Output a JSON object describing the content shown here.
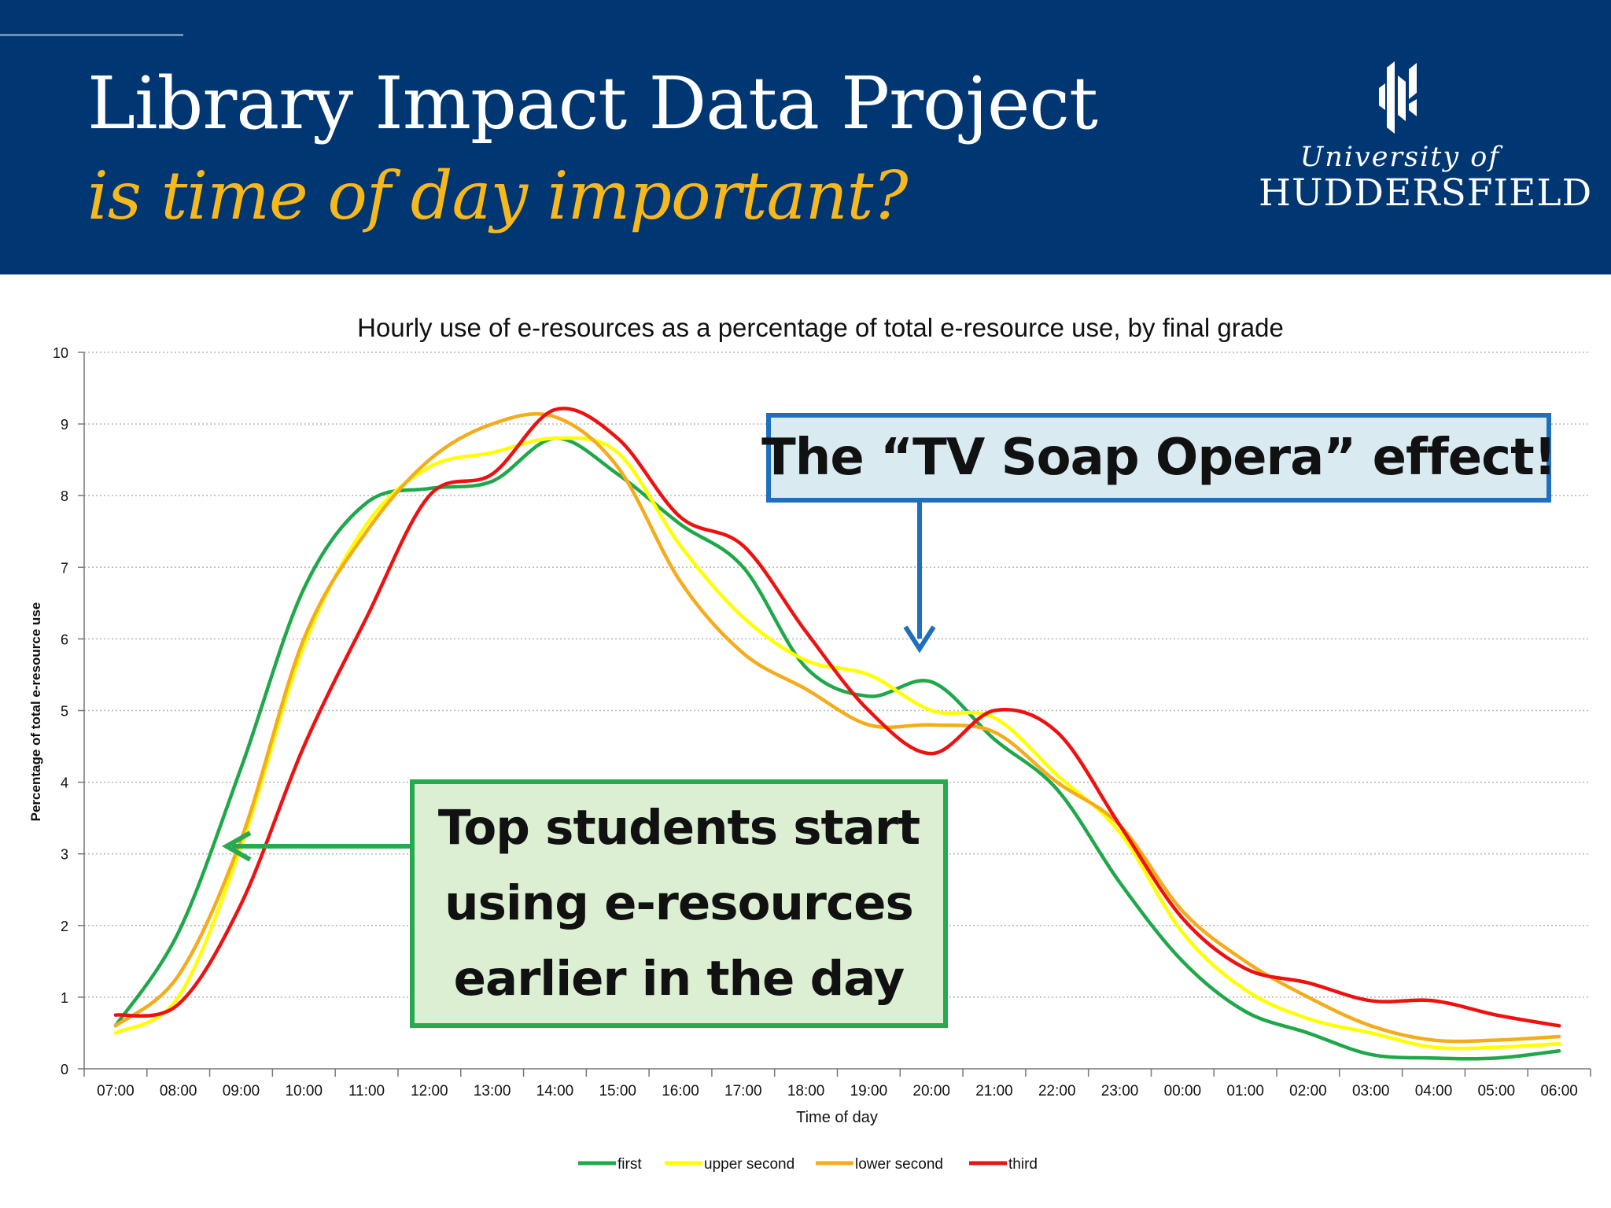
{
  "slide": {
    "title": "Library Impact Data Project",
    "subtitle": "is time of day important?",
    "logo": {
      "line1": "University of",
      "line2": "HUDDERSFIELD"
    },
    "callout_tv": "The “TV Soap Opera” effect!",
    "callout_top": "Top students start\nusing e-resources\nearlier in the day"
  },
  "colors": {
    "banner": "#003671",
    "subtitle": "#f7b81e",
    "first": "#1fa84a",
    "upper_second": "#ffff00",
    "lower_second": "#f5ac1b",
    "third": "#ee1111",
    "callout_tv_border": "#1f6fbf",
    "callout_top_border": "#27aa4f"
  },
  "chart_data": {
    "type": "line",
    "title": "Hourly use of e-resources as a percentage of total e-resource use,  by final grade",
    "xlabel": "Time of day",
    "ylabel": "Percentage of total e-resource use",
    "ylim": [
      0,
      10
    ],
    "yticks": [
      0,
      1,
      2,
      3,
      4,
      5,
      6,
      7,
      8,
      9,
      10
    ],
    "grid": true,
    "legend_position": "bottom-center",
    "categories": [
      "07:00",
      "08:00",
      "09:00",
      "10:00",
      "11:00",
      "12:00",
      "13:00",
      "14:00",
      "15:00",
      "16:00",
      "17:00",
      "18:00",
      "19:00",
      "20:00",
      "21:00",
      "22:00",
      "23:00",
      "00:00",
      "01:00",
      "02:00",
      "03:00",
      "04:00",
      "05:00",
      "06:00"
    ],
    "series": [
      {
        "name": "first",
        "color": "#1fa84a",
        "values": [
          0.6,
          1.9,
          4.2,
          6.7,
          7.9,
          8.1,
          8.2,
          8.8,
          8.3,
          7.6,
          7.0,
          5.6,
          5.2,
          5.4,
          4.6,
          3.9,
          2.6,
          1.5,
          0.8,
          0.5,
          0.2,
          0.15,
          0.15,
          0.25
        ]
      },
      {
        "name": "upper second",
        "color": "#ffff00",
        "values": [
          0.5,
          1.0,
          3.1,
          5.9,
          7.6,
          8.4,
          8.6,
          8.8,
          8.6,
          7.3,
          6.3,
          5.7,
          5.5,
          5.0,
          4.9,
          4.1,
          3.3,
          1.9,
          1.1,
          0.7,
          0.5,
          0.3,
          0.3,
          0.35
        ]
      },
      {
        "name": "lower second",
        "color": "#f5ac1b",
        "values": [
          0.6,
          1.3,
          3.2,
          6.0,
          7.5,
          8.5,
          9.0,
          9.1,
          8.4,
          6.8,
          5.8,
          5.3,
          4.8,
          4.8,
          4.7,
          4.0,
          3.4,
          2.2,
          1.5,
          1.0,
          0.6,
          0.4,
          0.4,
          0.45
        ]
      },
      {
        "name": "third",
        "color": "#ee1111",
        "values": [
          0.75,
          0.9,
          2.3,
          4.5,
          6.3,
          8.0,
          8.3,
          9.2,
          8.8,
          7.7,
          7.3,
          6.1,
          5.0,
          4.4,
          5.0,
          4.7,
          3.4,
          2.1,
          1.4,
          1.2,
          0.95,
          0.95,
          0.75,
          0.6
        ]
      }
    ]
  }
}
